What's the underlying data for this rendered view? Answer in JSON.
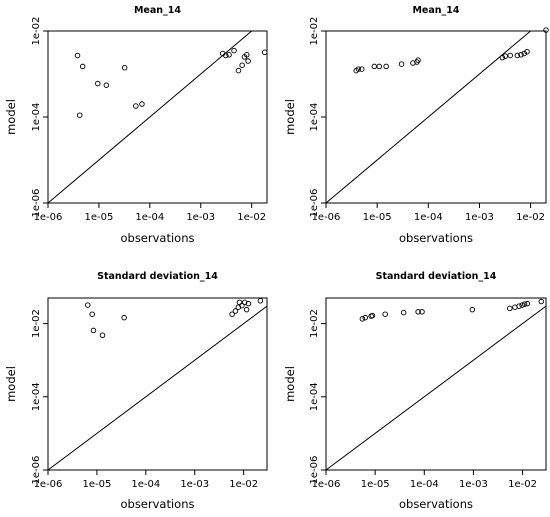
{
  "chart_data": [
    {
      "type": "scatter",
      "title": "Mean_14",
      "xlabel": "observations",
      "ylabel": "model",
      "log_x": true,
      "log_y": true,
      "xlim": [
        1e-06,
        0.02
      ],
      "ylim": [
        1e-06,
        0.01
      ],
      "x_ticks": [
        "1e-06",
        "1e-05",
        "1e-04",
        "1e-03",
        "1e-02"
      ],
      "y_ticks": [
        "1e-06",
        "1e-04",
        "1e-02"
      ],
      "identity_line": true,
      "points": [
        {
          "x": 3.8e-06,
          "y": 0.0027
        },
        {
          "x": 4.8e-06,
          "y": 0.0015
        },
        {
          "x": 9.5e-06,
          "y": 0.0006
        },
        {
          "x": 1.4e-05,
          "y": 0.00055
        },
        {
          "x": 3.2e-05,
          "y": 0.0014
        },
        {
          "x": 4.2e-06,
          "y": 0.00011
        },
        {
          "x": 5.3e-05,
          "y": 0.00018
        },
        {
          "x": 7e-05,
          "y": 0.0002
        },
        {
          "x": 0.0027,
          "y": 0.003
        },
        {
          "x": 0.0031,
          "y": 0.0027
        },
        {
          "x": 0.0036,
          "y": 0.0028
        },
        {
          "x": 0.0045,
          "y": 0.0035
        },
        {
          "x": 0.0055,
          "y": 0.0012
        },
        {
          "x": 0.0065,
          "y": 0.0016
        },
        {
          "x": 0.0072,
          "y": 0.0025
        },
        {
          "x": 0.008,
          "y": 0.0028
        },
        {
          "x": 0.0085,
          "y": 0.002
        },
        {
          "x": 0.018,
          "y": 0.0032
        }
      ]
    },
    {
      "type": "scatter",
      "title": "Mean_14",
      "xlabel": "observations",
      "ylabel": "model",
      "log_x": true,
      "log_y": true,
      "xlim": [
        1e-06,
        0.02
      ],
      "ylim": [
        1e-06,
        0.01
      ],
      "x_ticks": [
        "1e-06",
        "1e-05",
        "1e-04",
        "1e-03",
        "1e-02"
      ],
      "y_ticks": [
        "1e-06",
        "1e-04",
        "1e-02"
      ],
      "identity_line": true,
      "points": [
        {
          "x": 3.9e-06,
          "y": 0.0012
        },
        {
          "x": 4.3e-06,
          "y": 0.0013
        },
        {
          "x": 5e-06,
          "y": 0.0013
        },
        {
          "x": 8.8e-06,
          "y": 0.0015
        },
        {
          "x": 1.1e-05,
          "y": 0.0015
        },
        {
          "x": 1.5e-05,
          "y": 0.0015
        },
        {
          "x": 3e-05,
          "y": 0.0017
        },
        {
          "x": 5e-05,
          "y": 0.0018
        },
        {
          "x": 6e-05,
          "y": 0.0019
        },
        {
          "x": 6.3e-05,
          "y": 0.0021
        },
        {
          "x": 0.0028,
          "y": 0.0024
        },
        {
          "x": 0.0032,
          "y": 0.0026
        },
        {
          "x": 0.004,
          "y": 0.0027
        },
        {
          "x": 0.0055,
          "y": 0.0027
        },
        {
          "x": 0.0065,
          "y": 0.0028
        },
        {
          "x": 0.0075,
          "y": 0.003
        },
        {
          "x": 0.0085,
          "y": 0.0033
        },
        {
          "x": 0.02,
          "y": 0.0105
        }
      ]
    },
    {
      "type": "scatter",
      "title": "Standard deviation_14",
      "xlabel": "observations",
      "ylabel": "model",
      "log_x": true,
      "log_y": true,
      "xlim": [
        1e-06,
        0.03
      ],
      "ylim": [
        1e-06,
        0.05
      ],
      "x_ticks": [
        "1e-06",
        "1e-05",
        "1e-04",
        "1e-03",
        "1e-02"
      ],
      "y_ticks": [
        "1e-06",
        "1e-04",
        "1e-02"
      ],
      "identity_line": true,
      "points": [
        {
          "x": 6.5e-06,
          "y": 0.032
        },
        {
          "x": 8e-06,
          "y": 0.018
        },
        {
          "x": 8.5e-06,
          "y": 0.0065
        },
        {
          "x": 1.3e-05,
          "y": 0.0048
        },
        {
          "x": 3.6e-05,
          "y": 0.0145
        },
        {
          "x": 0.0058,
          "y": 0.018
        },
        {
          "x": 0.0068,
          "y": 0.022
        },
        {
          "x": 0.0078,
          "y": 0.028
        },
        {
          "x": 0.0082,
          "y": 0.038
        },
        {
          "x": 0.0092,
          "y": 0.031
        },
        {
          "x": 0.0105,
          "y": 0.038
        },
        {
          "x": 0.0115,
          "y": 0.024
        },
        {
          "x": 0.0125,
          "y": 0.035
        },
        {
          "x": 0.022,
          "y": 0.042
        }
      ]
    },
    {
      "type": "scatter",
      "title": "Standard deviation_14",
      "xlabel": "observations",
      "ylabel": "model",
      "log_x": true,
      "log_y": true,
      "xlim": [
        1e-06,
        0.03
      ],
      "ylim": [
        1e-06,
        0.05
      ],
      "x_ticks": [
        "1e-06",
        "1e-05",
        "1e-04",
        "1e-03",
        "1e-02"
      ],
      "y_ticks": [
        "1e-06",
        "1e-04",
        "1e-02"
      ],
      "identity_line": true,
      "points": [
        {
          "x": 5.5e-06,
          "y": 0.0135
        },
        {
          "x": 6.3e-06,
          "y": 0.0145
        },
        {
          "x": 8.3e-06,
          "y": 0.016
        },
        {
          "x": 8.8e-06,
          "y": 0.0165
        },
        {
          "x": 1.6e-05,
          "y": 0.018
        },
        {
          "x": 3.8e-05,
          "y": 0.02
        },
        {
          "x": 7.5e-05,
          "y": 0.021
        },
        {
          "x": 9e-05,
          "y": 0.021
        },
        {
          "x": 0.00095,
          "y": 0.024
        },
        {
          "x": 0.0055,
          "y": 0.026
        },
        {
          "x": 0.007,
          "y": 0.028
        },
        {
          "x": 0.0085,
          "y": 0.03
        },
        {
          "x": 0.0098,
          "y": 0.032
        },
        {
          "x": 0.011,
          "y": 0.034
        },
        {
          "x": 0.0125,
          "y": 0.035
        },
        {
          "x": 0.024,
          "y": 0.04
        }
      ]
    }
  ]
}
